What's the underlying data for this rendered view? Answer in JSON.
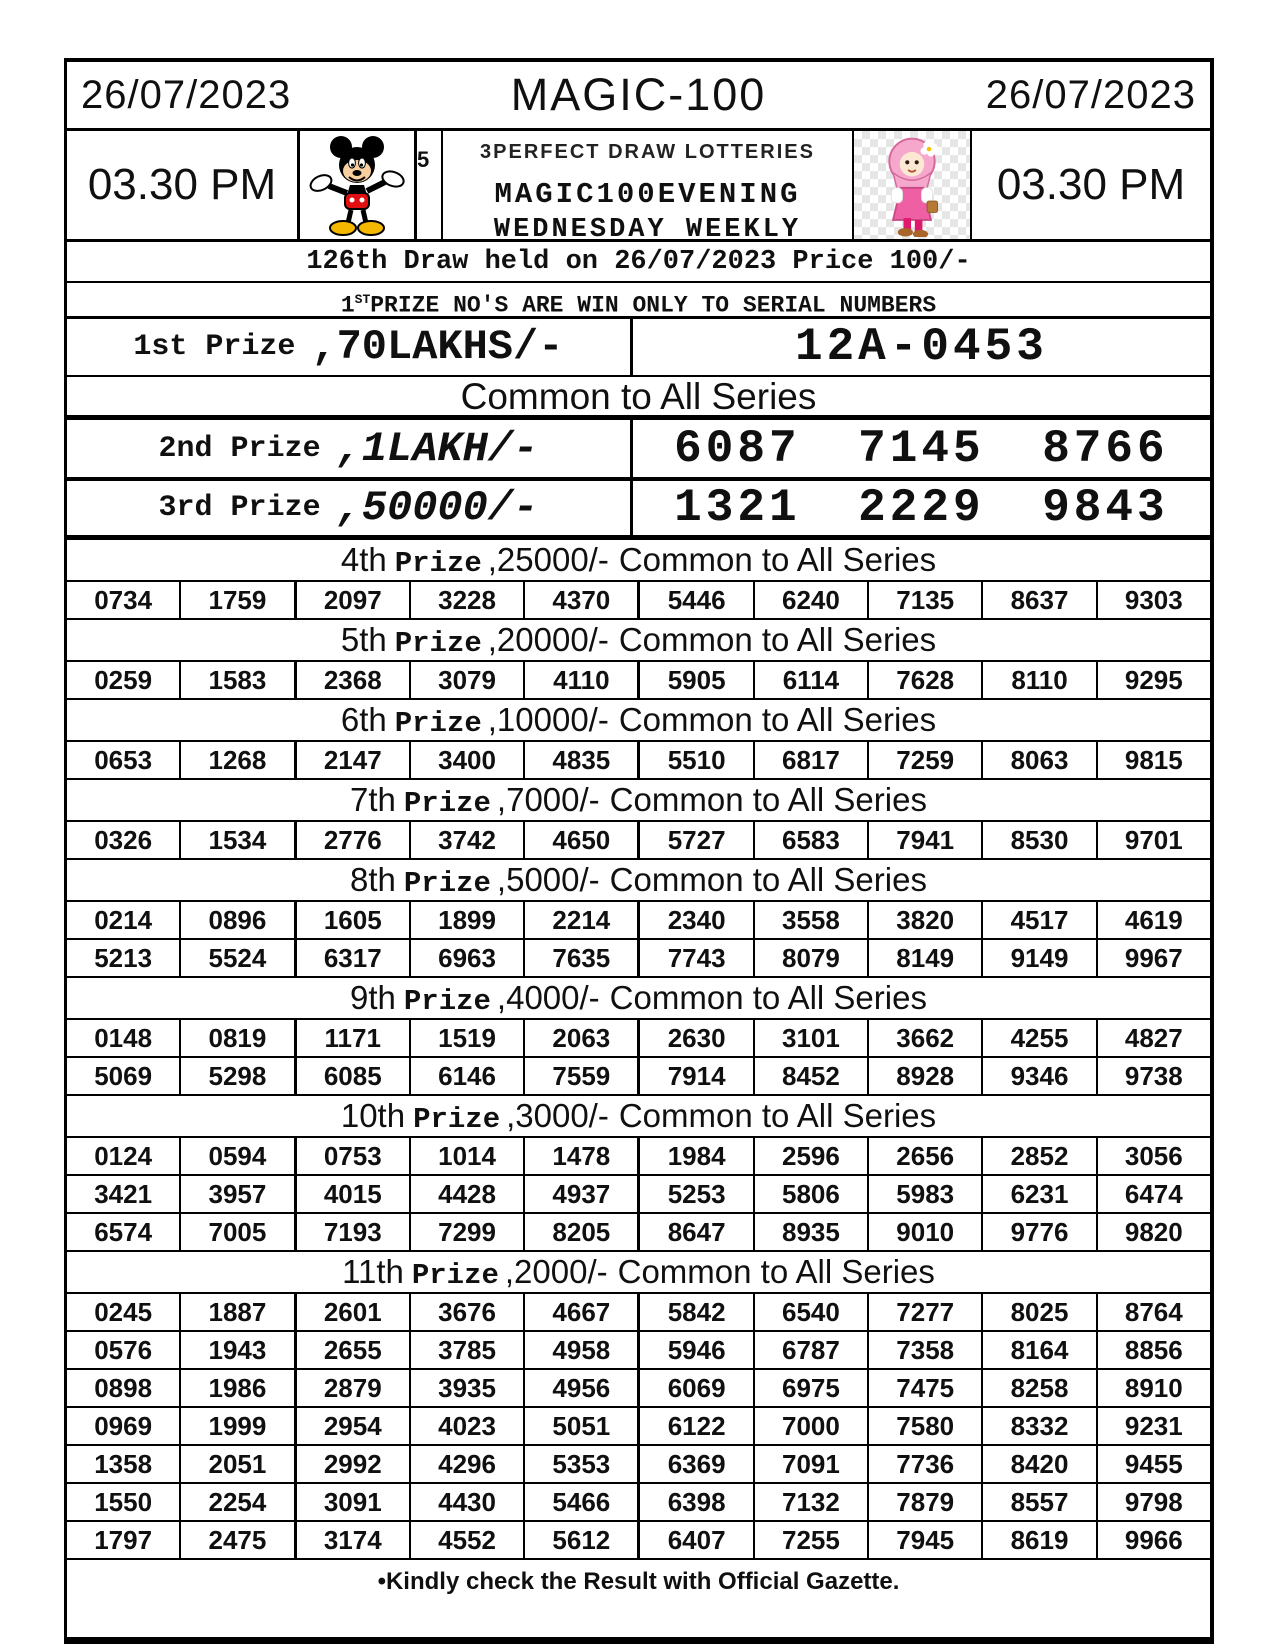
{
  "header": {
    "date_left": "26/07/2023",
    "title": "MAGIC-100",
    "date_right": "26/07/2023",
    "time_left": "03.30 PM",
    "time_right": "03.30 PM",
    "badge": "5",
    "left_logo": "mickey-mouse-cartoon",
    "right_logo": "hijab-girl-cartoon",
    "org_name": "3PERFECT DRAW LOTTERIES",
    "scheme_name": "MAGIC100EVENING",
    "scheme_day": "WEDNESDAY WEEKLY",
    "draw_info": "126th Draw held on 26/07/2023 Price 100/-",
    "serial_note": {
      "num": "1",
      "sup": "ST",
      "rest": "PRIZE NO'S ARE WIN ONLY TO SERIAL NUMBERS"
    }
  },
  "common_note": "Common to All Series",
  "top_prizes": [
    {
      "label": "1st Prize",
      "amount": ",70LAKHS/-",
      "numbers": "12A-0453"
    },
    {
      "label": "2nd Prize",
      "amount": ",1LAKH/-",
      "numbers": "6087 7145 8766"
    },
    {
      "label": "3rd Prize",
      "amount": ",50000/-",
      "numbers": "1321 2229 9843"
    }
  ],
  "sections": [
    {
      "ord": "4th",
      "prize_word": "Prize",
      "amount": ",25000/-",
      "common": "Common to All Series",
      "rows": [
        [
          "0734",
          "1759",
          "2097",
          "3228",
          "4370",
          "5446",
          "6240",
          "7135",
          "8637",
          "9303"
        ]
      ]
    },
    {
      "ord": "5th",
      "prize_word": "Prize",
      "amount": ",20000/-",
      "common": "Common to All Series",
      "rows": [
        [
          "0259",
          "1583",
          "2368",
          "3079",
          "4110",
          "5905",
          "6114",
          "7628",
          "8110",
          "9295"
        ]
      ]
    },
    {
      "ord": "6th",
      "prize_word": "Prize",
      "amount": ",10000/-",
      "common": "Common to All Series",
      "rows": [
        [
          "0653",
          "1268",
          "2147",
          "3400",
          "4835",
          "5510",
          "6817",
          "7259",
          "8063",
          "9815"
        ]
      ]
    },
    {
      "ord": "7th",
      "prize_word": "Prize",
      "amount": ",7000/-",
      "common": "Common to All Series",
      "rows": [
        [
          "0326",
          "1534",
          "2776",
          "3742",
          "4650",
          "5727",
          "6583",
          "7941",
          "8530",
          "9701"
        ]
      ]
    },
    {
      "ord": "8th",
      "prize_word": "Prize",
      "amount": ",5000/-",
      "common": "Common to All Series",
      "rows": [
        [
          "0214",
          "0896",
          "1605",
          "1899",
          "2214",
          "2340",
          "3558",
          "3820",
          "4517",
          "4619"
        ],
        [
          "5213",
          "5524",
          "6317",
          "6963",
          "7635",
          "7743",
          "8079",
          "8149",
          "9149",
          "9967"
        ]
      ]
    },
    {
      "ord": "9th",
      "prize_word": "Prize",
      "amount": ",4000/-",
      "common": "Common to All Series",
      "rows": [
        [
          "0148",
          "0819",
          "1171",
          "1519",
          "2063",
          "2630",
          "3101",
          "3662",
          "4255",
          "4827"
        ],
        [
          "5069",
          "5298",
          "6085",
          "6146",
          "7559",
          "7914",
          "8452",
          "8928",
          "9346",
          "9738"
        ]
      ]
    },
    {
      "ord": "10th",
      "prize_word": "Prize",
      "amount": ",3000/-",
      "common": "Common to All Series",
      "rows": [
        [
          "0124",
          "0594",
          "0753",
          "1014",
          "1478",
          "1984",
          "2596",
          "2656",
          "2852",
          "3056"
        ],
        [
          "3421",
          "3957",
          "4015",
          "4428",
          "4937",
          "5253",
          "5806",
          "5983",
          "6231",
          "6474"
        ],
        [
          "6574",
          "7005",
          "7193",
          "7299",
          "8205",
          "8647",
          "8935",
          "9010",
          "9776",
          "9820"
        ]
      ]
    },
    {
      "ord": "11th",
      "prize_word": "Prize",
      "amount": ",2000/-",
      "common": "Common to All Series",
      "rows": [
        [
          "0245",
          "1887",
          "2601",
          "3676",
          "4667",
          "5842",
          "6540",
          "7277",
          "8025",
          "8764"
        ],
        [
          "0576",
          "1943",
          "2655",
          "3785",
          "4958",
          "5946",
          "6787",
          "7358",
          "8164",
          "8856"
        ],
        [
          "0898",
          "1986",
          "2879",
          "3935",
          "4956",
          "6069",
          "6975",
          "7475",
          "8258",
          "8910"
        ],
        [
          "0969",
          "1999",
          "2954",
          "4023",
          "5051",
          "6122",
          "7000",
          "7580",
          "8332",
          "9231"
        ],
        [
          "1358",
          "2051",
          "2992",
          "4296",
          "5353",
          "6369",
          "7091",
          "7736",
          "8420",
          "9455"
        ],
        [
          "1550",
          "2254",
          "3091",
          "4430",
          "5466",
          "6398",
          "7132",
          "7879",
          "8557",
          "9798"
        ],
        [
          "1797",
          "2475",
          "3174",
          "4552",
          "5612",
          "6407",
          "7255",
          "7945",
          "8619",
          "9966"
        ]
      ]
    }
  ],
  "footer_note": "•Kindly check the Result with Official Gazette.",
  "colors": {
    "ink": "#101010",
    "paper": "#ffffff"
  }
}
